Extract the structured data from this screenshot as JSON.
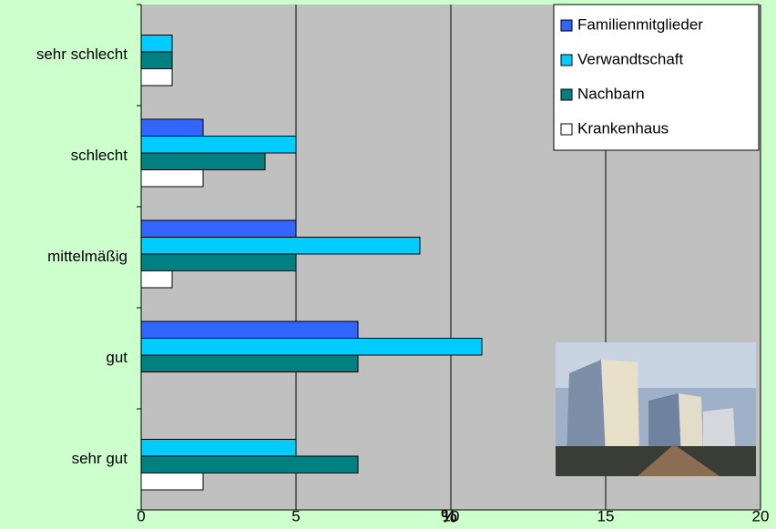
{
  "chart_data": {
    "type": "bar",
    "orientation": "horizontal",
    "x_label": "%",
    "categories": [
      "sehr schlecht",
      "schlecht",
      "mittelmäßig",
      "gut",
      "sehr gut"
    ],
    "series": [
      {
        "name": "Familienmitglieder",
        "color": "#3366ff",
        "values": [
          0,
          2,
          5,
          7,
          0
        ]
      },
      {
        "name": "Verwandtschaft",
        "color": "#00ccff",
        "values": [
          1,
          5,
          9,
          11,
          5
        ]
      },
      {
        "name": "Nachbarn",
        "color": "#008080",
        "values": [
          1,
          4,
          5,
          7,
          7
        ]
      },
      {
        "name": "Krankenhaus",
        "color": "#ffffff",
        "values": [
          1,
          2,
          1,
          0,
          2
        ]
      }
    ],
    "xlim": [
      0,
      20
    ],
    "xticks": [
      0,
      5,
      10,
      15,
      20
    ],
    "grid": true,
    "legend": "top-right"
  }
}
